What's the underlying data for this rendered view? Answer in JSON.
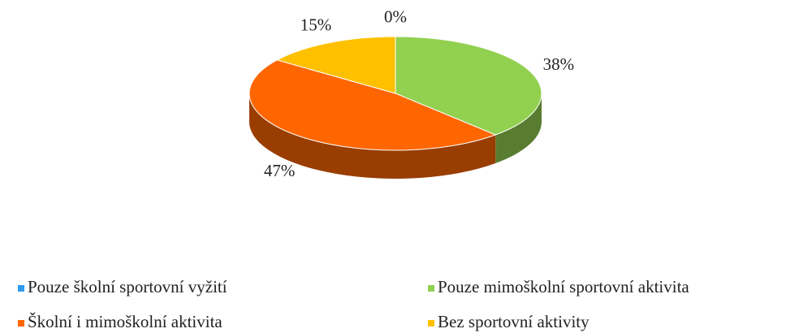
{
  "chart_data": {
    "type": "pie",
    "categories": [
      "Pouze školní sportovní vyžití",
      "Pouze mimoškolní sportovní aktivita",
      "Školní i mimoškolní aktivita",
      "Bez sportovní aktivity"
    ],
    "values": [
      0,
      38,
      47,
      15
    ],
    "value_labels": [
      "0%",
      "38%",
      "47%",
      "15%"
    ],
    "colors": [
      "#2e9bf0",
      "#92d050",
      "#ff6600",
      "#ffc000"
    ],
    "legend": "bottom"
  }
}
